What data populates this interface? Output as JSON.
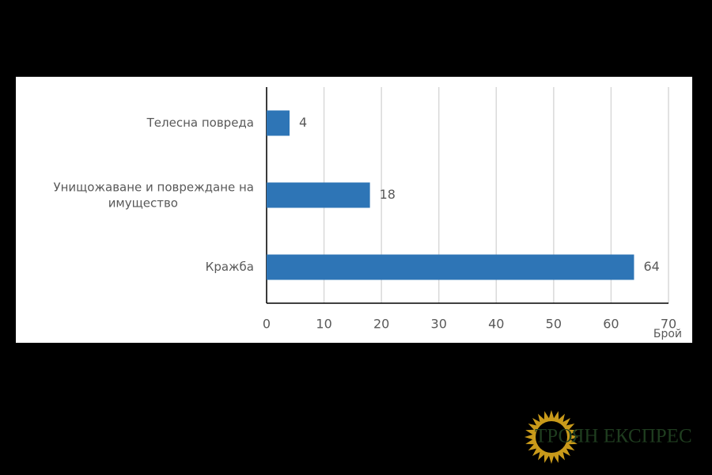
{
  "chart_data": {
    "type": "bar",
    "orientation": "horizontal",
    "categories": [
      "Телесна повреда",
      "Унищожаване и повреждане на имущество",
      "Кражба"
    ],
    "values": [
      4,
      18,
      64
    ],
    "color": "#2e75b6",
    "xlim": [
      0,
      70
    ],
    "xticks": [
      0,
      10,
      20,
      30,
      40,
      50,
      60,
      70
    ],
    "grid": true,
    "xlabel": "Брой"
  },
  "logo": "ТРОЯН ЕКСПРЕС"
}
